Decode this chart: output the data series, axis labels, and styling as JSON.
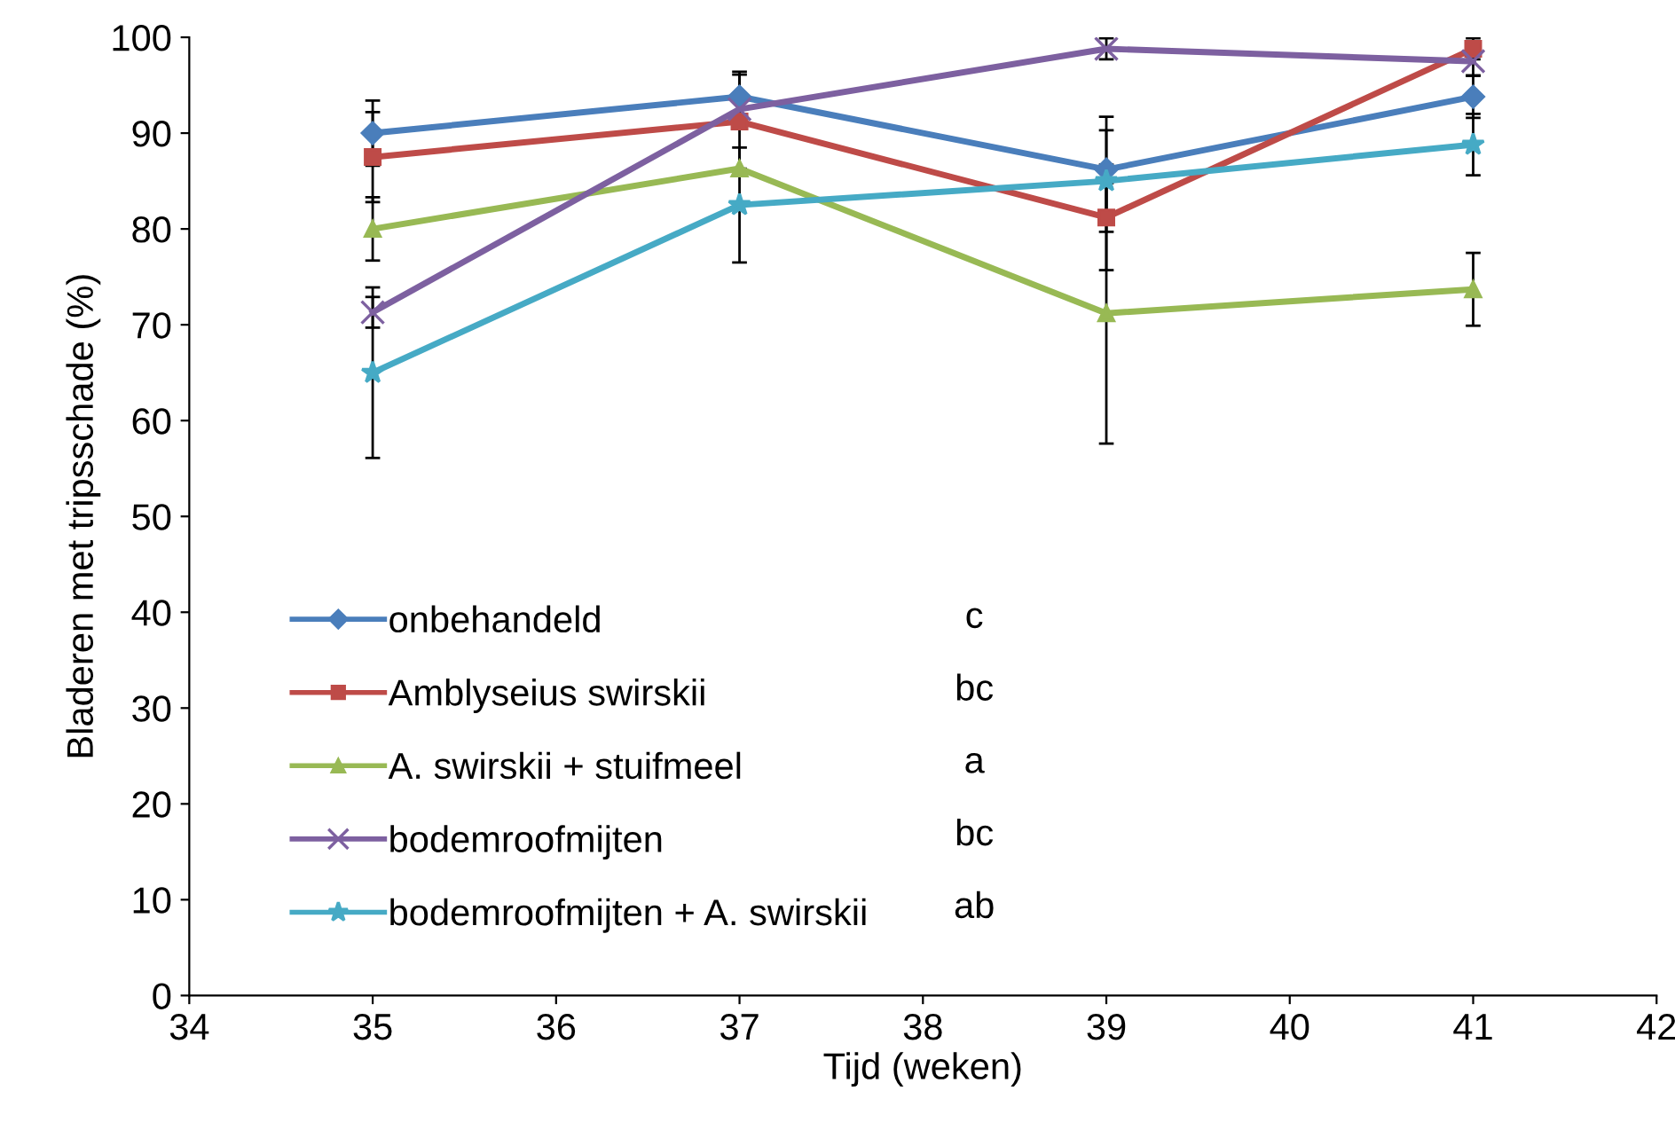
{
  "chart_data": {
    "type": "line",
    "xlabel": "Tijd (weken)",
    "ylabel": "Bladeren met tripsschade (%)",
    "x": [
      35,
      37,
      39,
      41
    ],
    "xlim": [
      34,
      42
    ],
    "xticks": [
      34,
      35,
      36,
      37,
      38,
      39,
      40,
      41,
      42
    ],
    "ylim": [
      0,
      100
    ],
    "yticks": [
      0,
      10,
      20,
      30,
      40,
      50,
      60,
      70,
      80,
      90,
      100
    ],
    "grid": false,
    "legend": "bottom left",
    "series": [
      {
        "name": "onbehandeld",
        "color": "#4a7ebb",
        "marker": "diamond",
        "values": [
          90,
          93.8,
          86.2,
          93.8
        ],
        "errors": [
          3.4,
          2.6,
          5.5,
          2.2
        ]
      },
      {
        "name": "Amblyseius swirskii",
        "color": "#be4b48",
        "marker": "square",
        "values": [
          87.5,
          91.2,
          81.2,
          98.8
        ],
        "errors": [
          4.7,
          4.9,
          5.5,
          1.1
        ]
      },
      {
        "name": "A. swirskii + stuifmeel",
        "color": "#98b954",
        "marker": "triangle",
        "values": [
          80,
          86.3,
          71.2,
          73.7
        ],
        "errors": [
          3.3,
          null,
          13.6,
          3.8
        ]
      },
      {
        "name": "bodemroofmijten",
        "color": "#7d60a0",
        "marker": "cross",
        "values": [
          71.3,
          92.5,
          98.8,
          97.5
        ],
        "errors": [
          1.6,
          null,
          1.1,
          1.5
        ]
      },
      {
        "name": "bodemroofmijten + A. swirskii",
        "color": "#46aac5",
        "marker": "star",
        "values": [
          65,
          82.5,
          85,
          88.8
        ],
        "errors": [
          8.9,
          6,
          5.3,
          3.2
        ]
      }
    ],
    "annotations": [
      "c",
      "bc",
      "a",
      "bc",
      "ab"
    ]
  }
}
